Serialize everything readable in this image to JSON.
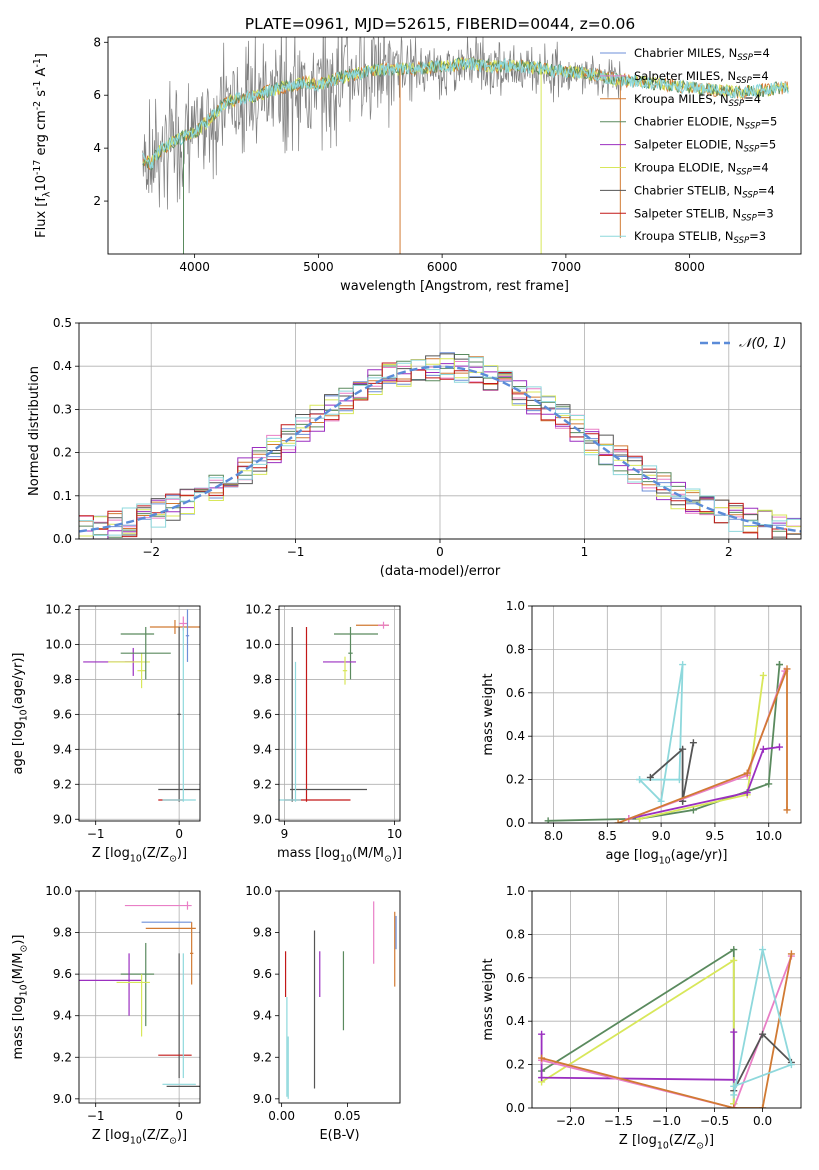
{
  "figure_title": "PLATE=0961, MJD=52615, FIBERID=0044, z=0.06",
  "colors": {
    "c0": "#6d8fd8",
    "c1": "#e97fc6",
    "c2": "#d17a33",
    "c3": "#5a8a5e",
    "c4": "#9b2fc0",
    "c5": "#d8e75a",
    "c6": "#555555",
    "c7": "#c21818",
    "c8": "#8ed8dc",
    "gauss": "#5b8bd8"
  },
  "chart_data": [
    {
      "id": "spectrum",
      "type": "line",
      "xlabel": "wavelength [Angstrom, rest frame]",
      "ylabel": "Flux [f$_\\lambda$10$^{-17}$ erg cm$^{-2}$ s$^{-1}$ A$^{-1}$]",
      "xlim": [
        3300,
        8900
      ],
      "ylim": [
        0,
        8.2
      ],
      "xticks": [
        4000,
        5000,
        6000,
        7000,
        8000
      ],
      "yticks": [
        2,
        4,
        6,
        8
      ],
      "legend": [
        {
          "base": "Chabrier MILES, N",
          "sub": "SSP",
          "tail": "=4",
          "color": "c0"
        },
        {
          "base": "Salpeter MILES, N",
          "sub": "SSP",
          "tail": "=4",
          "color": "c1"
        },
        {
          "base": "Kroupa MILES, N",
          "sub": "SSP",
          "tail": "=4",
          "color": "c2"
        },
        {
          "base": "Chabrier ELODIE, N",
          "sub": "SSP",
          "tail": "=5",
          "color": "c3"
        },
        {
          "base": "Salpeter ELODIE, N",
          "sub": "SSP",
          "tail": "=5",
          "color": "c4"
        },
        {
          "base": "Kroupa ELODIE, N",
          "sub": "SSP",
          "tail": "=4",
          "color": "c5"
        },
        {
          "base": "Chabrier STELIB, N",
          "sub": "SSP",
          "tail": "=4",
          "color": "c6"
        },
        {
          "base": "Salpeter STELIB, N",
          "sub": "SSP",
          "tail": "=3",
          "color": "c7"
        },
        {
          "base": "Kroupa STELIB, N",
          "sub": "SSP",
          "tail": "=3",
          "color": "c8"
        }
      ],
      "legend_loc": "right",
      "continuum": {
        "x": [
          3580,
          3650,
          3700,
          3800,
          3900,
          4000,
          4100,
          4200,
          4300,
          4500,
          4700,
          4900,
          5000,
          5200,
          5400,
          5600,
          5800,
          6000,
          6200,
          6400,
          6600,
          6800,
          7000,
          7200,
          7400,
          7600,
          7800,
          8000,
          8200,
          8400,
          8600,
          8800
        ],
        "y": [
          3.6,
          3.4,
          3.8,
          4.2,
          4.4,
          4.6,
          5.0,
          5.5,
          5.8,
          6.0,
          6.3,
          6.5,
          6.4,
          6.7,
          6.9,
          7.0,
          7.0,
          7.1,
          7.2,
          7.1,
          7.1,
          7.0,
          6.9,
          6.8,
          6.6,
          6.5,
          6.4,
          6.3,
          6.2,
          6.1,
          6.2,
          6.3
        ]
      },
      "data_range": [
        3580,
        7450
      ],
      "model_range": [
        3580,
        8800
      ],
      "spikes": [
        {
          "x": 3910,
          "y0": 0,
          "color": "c3"
        },
        {
          "x": 5660,
          "y0": 0,
          "color": "c2"
        },
        {
          "x": 6800,
          "y0": 0,
          "color": "c5"
        },
        {
          "x": 7440,
          "y0": 0.6,
          "color": "c2"
        }
      ]
    },
    {
      "id": "residuals",
      "type": "line",
      "xlabel": "(data-model)/error",
      "ylabel": "Normed distribution",
      "xlim": [
        -2.5,
        2.5
      ],
      "ylim": [
        0,
        0.5
      ],
      "xticks": [
        -2,
        -1,
        0,
        1,
        2
      ],
      "yticks": [
        0.0,
        0.1,
        0.2,
        0.3,
        0.4,
        0.5
      ],
      "grid": true,
      "legend": [
        {
          "label": "𝒩(0, 1)",
          "color": "gauss"
        }
      ],
      "legend_loc": "upper right",
      "bin_width": 0.1,
      "bin_start": -2.5,
      "series": [
        {
          "color": "c0",
          "jitter": 1
        },
        {
          "color": "c1",
          "jitter": 2
        },
        {
          "color": "c2",
          "jitter": 3
        },
        {
          "color": "c3",
          "jitter": 4
        },
        {
          "color": "c4",
          "jitter": 5
        },
        {
          "color": "c5",
          "jitter": 6
        },
        {
          "color": "c6",
          "jitter": 7
        },
        {
          "color": "c7",
          "jitter": 8
        },
        {
          "color": "c8",
          "jitter": 9
        }
      ]
    },
    {
      "id": "z-age",
      "type": "scatter",
      "xlabel": "Z [log$_{10}$(Z/Z$_\\odot$)]",
      "ylabel": "age  [log$_{10}$(age/yr)]",
      "xlim": [
        -1.2,
        0.25
      ],
      "ylim": [
        8.99,
        10.22
      ],
      "xticks": [
        -1,
        0
      ],
      "yticks": [
        9.0,
        9.2,
        9.4,
        9.6,
        9.8,
        10.0,
        10.2
      ],
      "grid": true,
      "points": [
        {
          "x": -0.85,
          "y": 9.9,
          "ex": 0.3,
          "ey": 0,
          "color": "c4"
        },
        {
          "x": -0.55,
          "y": 9.9,
          "ex": 0.1,
          "ey": 0.08,
          "color": "c4"
        },
        {
          "x": -0.6,
          "y": 9.9,
          "ex": 0.25,
          "ey": 0,
          "color": "c5"
        },
        {
          "x": -0.45,
          "y": 9.85,
          "ex": 0.05,
          "ey": 0.1,
          "color": "c5"
        },
        {
          "x": -0.5,
          "y": 10.06,
          "ex": 0.2,
          "ey": 0,
          "color": "c3"
        },
        {
          "x": -0.4,
          "y": 9.95,
          "ex": 0.3,
          "ey": 0.15,
          "color": "c3"
        },
        {
          "x": -0.05,
          "y": 10.1,
          "ex": 0.3,
          "ey": 0.04,
          "color": "c2"
        },
        {
          "x": 0.05,
          "y": 10.12,
          "ex": 0.05,
          "ey": 0.04,
          "color": "c1"
        },
        {
          "x": 0.0,
          "y": 9.6,
          "ex": 0.02,
          "ey": 0.5,
          "color": "c6"
        },
        {
          "x": 0.0,
          "y": 9.17,
          "ex": 0.25,
          "ey": 0,
          "color": "c6"
        },
        {
          "x": -0.1,
          "y": 9.11,
          "ex": 0.15,
          "ey": 0,
          "color": "c7"
        },
        {
          "x": 0.05,
          "y": 9.6,
          "ex": 0.0,
          "ey": 0.5,
          "color": "c8"
        },
        {
          "x": 0.0,
          "y": 9.11,
          "ex": 0.2,
          "ey": 0,
          "color": "c8"
        },
        {
          "x": 0.1,
          "y": 10.05,
          "ex": 0.02,
          "ey": 0.15,
          "color": "c0"
        }
      ]
    },
    {
      "id": "mass-age",
      "type": "scatter",
      "xlabel": "mass [log$_{10}$(M/M$_\\odot$)]",
      "ylabel": "",
      "xlim": [
        8.95,
        10.05
      ],
      "ylim": [
        8.99,
        10.22
      ],
      "xticks": [
        9,
        10
      ],
      "yticks": [
        9.0,
        9.2,
        9.4,
        9.6,
        9.8,
        10.0,
        10.2
      ],
      "grid": true,
      "points": [
        {
          "x": 9.8,
          "y": 10.11,
          "ex": 0.15,
          "ey": 0,
          "color": "c2"
        },
        {
          "x": 9.9,
          "y": 10.11,
          "ex": 0.05,
          "ey": 0.02,
          "color": "c1"
        },
        {
          "x": 9.65,
          "y": 10.06,
          "ex": 0.2,
          "ey": 0,
          "color": "c3"
        },
        {
          "x": 9.6,
          "y": 9.95,
          "ex": 0.02,
          "ey": 0.15,
          "color": "c3"
        },
        {
          "x": 9.5,
          "y": 9.9,
          "ex": 0.15,
          "ey": 0,
          "color": "c4"
        },
        {
          "x": 9.55,
          "y": 9.85,
          "ex": 0.02,
          "ey": 0.08,
          "color": "c5"
        },
        {
          "x": 9.2,
          "y": 9.6,
          "ex": 0.0,
          "ey": 0.5,
          "color": "c7"
        },
        {
          "x": 9.3,
          "y": 9.11,
          "ex": 0.3,
          "ey": 0,
          "color": "c7"
        },
        {
          "x": 9.07,
          "y": 9.6,
          "ex": 0.0,
          "ey": 0.5,
          "color": "c6"
        },
        {
          "x": 9.4,
          "y": 9.17,
          "ex": 0.35,
          "ey": 0,
          "color": "c6"
        },
        {
          "x": 9.05,
          "y": 9.11,
          "ex": 0.1,
          "ey": 0,
          "color": "c8"
        },
        {
          "x": 9.1,
          "y": 9.5,
          "ex": 0.0,
          "ey": 0.4,
          "color": "c8"
        }
      ]
    },
    {
      "id": "age-weight",
      "type": "line",
      "xlabel": "age  [log$_{10}$(age/yr)]",
      "ylabel": "mass weight",
      "xlim": [
        7.8,
        10.3
      ],
      "ylim": [
        0,
        1
      ],
      "xticks": [
        8.0,
        8.5,
        9.0,
        9.5,
        10.0
      ],
      "yticks": [
        0.0,
        0.2,
        0.4,
        0.6,
        0.8,
        1.0
      ],
      "grid": true,
      "series": [
        {
          "color": "c8",
          "x": [
            8.8,
            9.0,
            9.2,
            9.17,
            8.8
          ],
          "y": [
            0.2,
            0.1,
            0.73,
            0.2,
            0.2
          ]
        },
        {
          "color": "c6",
          "x": [
            8.9,
            9.2,
            9.2,
            9.3,
            9.2
          ],
          "y": [
            0.21,
            0.34,
            0.1,
            0.37,
            0.1
          ]
        },
        {
          "color": "c3",
          "x": [
            7.95,
            8.8,
            9.3,
            10.0,
            10.1,
            10.1
          ],
          "y": [
            0.01,
            0.02,
            0.06,
            0.18,
            0.73,
            0.73
          ]
        },
        {
          "color": "c5",
          "x": [
            8.8,
            9.8,
            9.95
          ],
          "y": [
            0.02,
            0.13,
            0.68
          ]
        },
        {
          "color": "c4",
          "x": [
            8.7,
            9.8,
            9.95,
            10.1
          ],
          "y": [
            0.02,
            0.14,
            0.34,
            0.35
          ]
        },
        {
          "color": "c1",
          "x": [
            8.7,
            9.8,
            10.15
          ],
          "y": [
            0.02,
            0.22,
            0.7
          ]
        },
        {
          "color": "c2",
          "x": [
            8.6,
            9.8,
            10.17,
            10.17
          ],
          "y": [
            0.0,
            0.23,
            0.71,
            0.06
          ]
        }
      ]
    },
    {
      "id": "z-mass",
      "type": "scatter",
      "xlabel": "Z [log$_{10}$(Z/Z$_\\odot$)]",
      "ylabel": "mass [log$_{10}$(M/M$_\\odot$)]",
      "xlim": [
        -1.2,
        0.25
      ],
      "ylim": [
        8.98,
        10.0
      ],
      "xticks": [
        -1,
        0
      ],
      "yticks": [
        9.0,
        9.2,
        9.4,
        9.6,
        9.8,
        10.0
      ],
      "grid": true,
      "points": [
        {
          "x": -0.25,
          "y": 9.93,
          "ex": 0.4,
          "ey": 0,
          "color": "c1"
        },
        {
          "x": 0.1,
          "y": 9.93,
          "ex": 0.0,
          "ey": 0.02,
          "color": "c1"
        },
        {
          "x": -0.15,
          "y": 9.85,
          "ex": 0.3,
          "ey": 0,
          "color": "c0"
        },
        {
          "x": -0.1,
          "y": 9.82,
          "ex": 0.3,
          "ey": 0,
          "color": "c2"
        },
        {
          "x": 0.15,
          "y": 9.7,
          "ex": 0.02,
          "ey": 0.15,
          "color": "c2"
        },
        {
          "x": -0.5,
          "y": 9.6,
          "ex": 0.2,
          "ey": 0,
          "color": "c3"
        },
        {
          "x": -0.4,
          "y": 9.55,
          "ex": 0.0,
          "ey": 0.2,
          "color": "c3"
        },
        {
          "x": -0.85,
          "y": 9.57,
          "ex": 0.4,
          "ey": 0,
          "color": "c4"
        },
        {
          "x": -0.6,
          "y": 9.55,
          "ex": 0.0,
          "ey": 0.15,
          "color": "c4"
        },
        {
          "x": -0.55,
          "y": 9.56,
          "ex": 0.2,
          "ey": 0,
          "color": "c5"
        },
        {
          "x": -0.45,
          "y": 9.45,
          "ex": 0.0,
          "ey": 0.15,
          "color": "c5"
        },
        {
          "x": 0.0,
          "y": 9.4,
          "ex": 0.0,
          "ey": 0.3,
          "color": "c6"
        },
        {
          "x": -0.05,
          "y": 9.21,
          "ex": 0.2,
          "ey": 0,
          "color": "c7"
        },
        {
          "x": 0.05,
          "y": 9.4,
          "ex": 0.0,
          "ey": 0.3,
          "color": "c8"
        },
        {
          "x": 0.0,
          "y": 9.07,
          "ex": 0.2,
          "ey": 0,
          "color": "c8"
        },
        {
          "x": 0.05,
          "y": 9.06,
          "ex": 0.2,
          "ey": 0,
          "color": "c6"
        }
      ]
    },
    {
      "id": "ebv-mass",
      "type": "scatter",
      "xlabel": "E(B-V)",
      "ylabel": "",
      "xlim": [
        -0.002,
        0.09
      ],
      "ylim": [
        8.98,
        10.0
      ],
      "xticks": [
        0.0,
        0.05
      ],
      "yticks": [
        9.0,
        9.2,
        9.4,
        9.6,
        9.8,
        10.0
      ],
      "grid": false,
      "points": [
        {
          "x": 0.003,
          "y": 9.6,
          "ex": 0,
          "ey": 0.11,
          "color": "c7"
        },
        {
          "x": 0.004,
          "y": 9.25,
          "ex": 0,
          "ey": 0.24,
          "color": "c8"
        },
        {
          "x": 0.005,
          "y": 9.15,
          "ex": 0,
          "ey": 0.15,
          "color": "c8"
        },
        {
          "x": 0.025,
          "y": 9.43,
          "ex": 0,
          "ey": 0.38,
          "color": "c6"
        },
        {
          "x": 0.029,
          "y": 9.6,
          "ex": 0,
          "ey": 0.11,
          "color": "c4"
        },
        {
          "x": 0.047,
          "y": 9.52,
          "ex": 0,
          "ey": 0.19,
          "color": "c3"
        },
        {
          "x": 0.07,
          "y": 9.8,
          "ex": 0,
          "ey": 0.15,
          "color": "c1"
        },
        {
          "x": 0.086,
          "y": 9.72,
          "ex": 0,
          "ey": 0.18,
          "color": "c2"
        },
        {
          "x": 0.087,
          "y": 9.8,
          "ex": 0,
          "ey": 0.08,
          "color": "c0"
        }
      ]
    },
    {
      "id": "z-weight",
      "type": "line",
      "xlabel": "Z [log$_{10}$(Z/Z$_\\odot$)]",
      "ylabel": "mass weight",
      "xlim": [
        -2.4,
        0.4
      ],
      "ylim": [
        0,
        1
      ],
      "xticks": [
        -2.0,
        -1.5,
        -1.0,
        -0.5,
        0.0
      ],
      "yticks": [
        0.0,
        0.2,
        0.4,
        0.6,
        0.8,
        1.0
      ],
      "grid": true,
      "series": [
        {
          "color": "c3",
          "x": [
            -2.3,
            -0.3,
            -0.3
          ],
          "y": [
            0.17,
            0.73,
            0.02
          ]
        },
        {
          "color": "c5",
          "x": [
            -2.3,
            -0.3,
            -0.3
          ],
          "y": [
            0.12,
            0.68,
            0.02
          ]
        },
        {
          "color": "c4",
          "x": [
            -2.3,
            -2.3,
            -0.3,
            -0.3
          ],
          "y": [
            0.34,
            0.14,
            0.13,
            0.35
          ]
        },
        {
          "color": "c1",
          "x": [
            -2.3,
            -0.3,
            0.3
          ],
          "y": [
            0.22,
            0.0,
            0.7
          ]
        },
        {
          "color": "c2",
          "x": [
            -2.3,
            -0.3,
            0.0,
            0.3
          ],
          "y": [
            0.23,
            0.0,
            0.0,
            0.71
          ]
        },
        {
          "color": "c6",
          "x": [
            -0.3,
            0.0,
            0.3
          ],
          "y": [
            0.08,
            0.34,
            0.21
          ]
        },
        {
          "color": "c8",
          "x": [
            -0.3,
            0.0,
            0.3,
            -0.3
          ],
          "y": [
            0.06,
            0.73,
            0.2,
            0.1
          ]
        }
      ]
    }
  ]
}
